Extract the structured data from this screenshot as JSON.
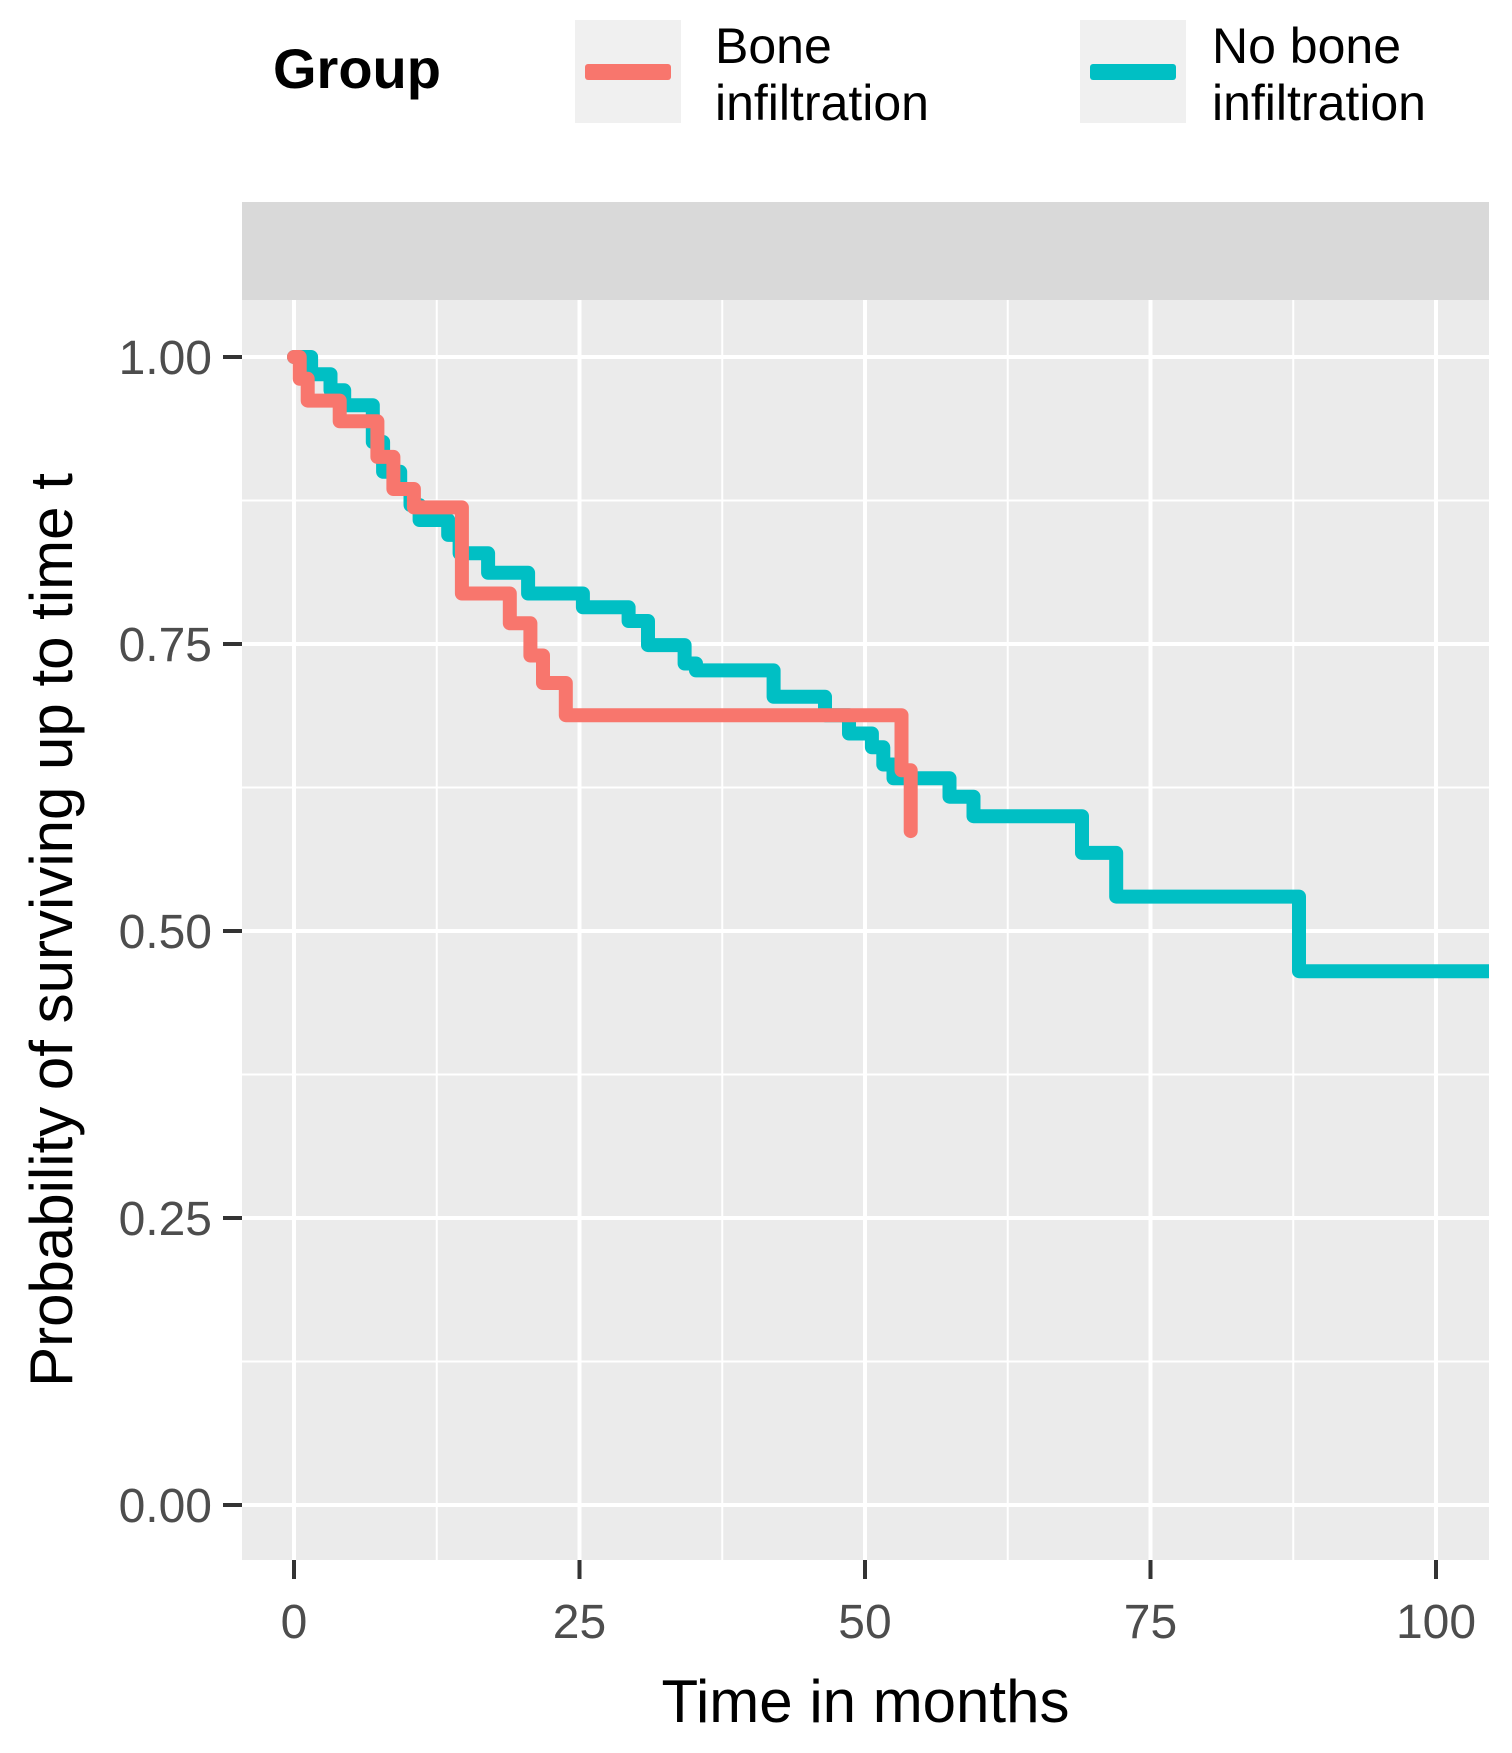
{
  "figure": {
    "background": "#FFFFFF"
  },
  "legend": {
    "title": "Group",
    "key_background": "#F0F0F0",
    "items": [
      {
        "name": "Bone infiltration",
        "label_lines": [
          "Bone",
          "infiltration"
        ],
        "color": "#F8766D"
      },
      {
        "name": "No bone infiltration",
        "label_lines": [
          "No bone",
          "infiltration"
        ],
        "color": "#00BFC4"
      }
    ]
  },
  "panel": {
    "background": "#EBEBEB",
    "strip_background": "#D9D9D9",
    "grid_color": "#FFFFFF",
    "tick_color": "#333333",
    "tick_label_color": "#4D4D4D",
    "title_color": "#000000"
  },
  "axes": {
    "x": {
      "title": "Time in months",
      "tick_labels": [
        "0",
        "25",
        "50",
        "75",
        "100"
      ]
    },
    "y": {
      "title": "Probability of surviving up to time t",
      "tick_labels": [
        "0.00",
        "0.25",
        "0.50",
        "0.75",
        "1.00"
      ]
    }
  },
  "chart_data": {
    "type": "line",
    "subtype": "kaplan_meier_step",
    "title": "",
    "xlabel": "Time in months",
    "ylabel": "Probability of surviving up to time t",
    "xlim": [
      -4.5,
      104.6
    ],
    "ylim": [
      -0.048,
      1.048
    ],
    "x_ticks": [
      0,
      25,
      50,
      75,
      100
    ],
    "x_minor_ticks": [
      12.5,
      37.5,
      62.5,
      87.5
    ],
    "y_ticks": [
      0,
      0.25,
      0.5,
      0.75,
      1
    ],
    "y_minor_ticks": [
      0.125,
      0.375,
      0.625,
      0.875
    ],
    "grid": "major_and_minor",
    "legend_title": "Group",
    "legend_position": "top",
    "series": [
      {
        "name": "Bone infiltration",
        "color": "#F8766D",
        "points": [
          [
            0,
            1.0
          ],
          [
            0.5,
            0.981
          ],
          [
            1.2,
            0.962
          ],
          [
            4.0,
            0.944
          ],
          [
            7.3,
            0.913
          ],
          [
            8.7,
            0.885
          ],
          [
            10.5,
            0.869
          ],
          [
            14.7,
            0.794
          ],
          [
            18.9,
            0.768
          ],
          [
            20.7,
            0.74
          ],
          [
            21.8,
            0.716
          ],
          [
            23.8,
            0.688
          ],
          [
            53.2,
            0.64
          ],
          [
            54.0,
            0.587
          ]
        ],
        "ends_with_vertical_drop": true
      },
      {
        "name": "No bone infiltration",
        "color": "#00BFC4",
        "points": [
          [
            0,
            1.0
          ],
          [
            1.5,
            0.985
          ],
          [
            3.2,
            0.971
          ],
          [
            4.4,
            0.958
          ],
          [
            6.9,
            0.926
          ],
          [
            7.8,
            0.9
          ],
          [
            9.3,
            0.885
          ],
          [
            10.2,
            0.871
          ],
          [
            11.0,
            0.858
          ],
          [
            13.5,
            0.845
          ],
          [
            14.5,
            0.829
          ],
          [
            17.0,
            0.812
          ],
          [
            20.5,
            0.794
          ],
          [
            25.3,
            0.782
          ],
          [
            29.3,
            0.77
          ],
          [
            31.0,
            0.749
          ],
          [
            34.2,
            0.733
          ],
          [
            35.2,
            0.727
          ],
          [
            42.0,
            0.704
          ],
          [
            46.5,
            0.688
          ],
          [
            48.6,
            0.672
          ],
          [
            50.6,
            0.66
          ],
          [
            51.6,
            0.645
          ],
          [
            52.5,
            0.633
          ],
          [
            57.4,
            0.617
          ],
          [
            59.5,
            0.6
          ],
          [
            69.0,
            0.568
          ],
          [
            72.0,
            0.53
          ],
          [
            88.0,
            0.465
          ]
        ],
        "extend_to": 104.6
      }
    ]
  }
}
